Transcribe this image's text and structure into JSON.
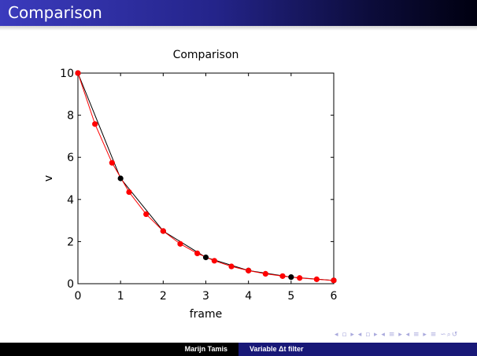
{
  "slide": {
    "title": "Comparison",
    "footer_author": "Marijn Tamis",
    "footer_title": "Variable Δt filter",
    "nav_symbols": "◂ ▫ ▸ ◂ ▫ ▸ ◂ ≡ ▸ ◂ ≡ ▸ ≡ ∽⌕↺"
  },
  "colors": {
    "title_bar": "#2a2a9a",
    "footer_left": "#000000",
    "footer_right": "#181877",
    "black_series": "#000000",
    "red_series": "#ff0000"
  },
  "chart_data": {
    "type": "line",
    "title": "Comparison",
    "xlabel": "frame",
    "ylabel": "v",
    "xlim": [
      0,
      6
    ],
    "ylim": [
      0,
      10
    ],
    "xticks": [
      0,
      1,
      2,
      3,
      4,
      5,
      6
    ],
    "yticks": [
      0,
      2,
      4,
      6,
      8,
      10
    ],
    "grid": false,
    "series": [
      {
        "color": "#000000",
        "x": [
          0,
          1,
          2,
          3,
          4,
          5,
          6
        ],
        "y": [
          10,
          5,
          2.5,
          1.25,
          0.625,
          0.3125,
          0.156
        ]
      },
      {
        "color": "#ff0000",
        "x": [
          0,
          0.4,
          0.8,
          1.2,
          1.6,
          2.0,
          2.4,
          2.8,
          3.2,
          3.6,
          4.0,
          4.4,
          4.8,
          5.2,
          5.6,
          6.0
        ],
        "y": [
          10,
          7.58,
          5.74,
          4.35,
          3.3,
          2.5,
          1.89,
          1.44,
          1.09,
          0.82,
          0.62,
          0.47,
          0.36,
          0.27,
          0.21,
          0.156
        ]
      }
    ]
  }
}
